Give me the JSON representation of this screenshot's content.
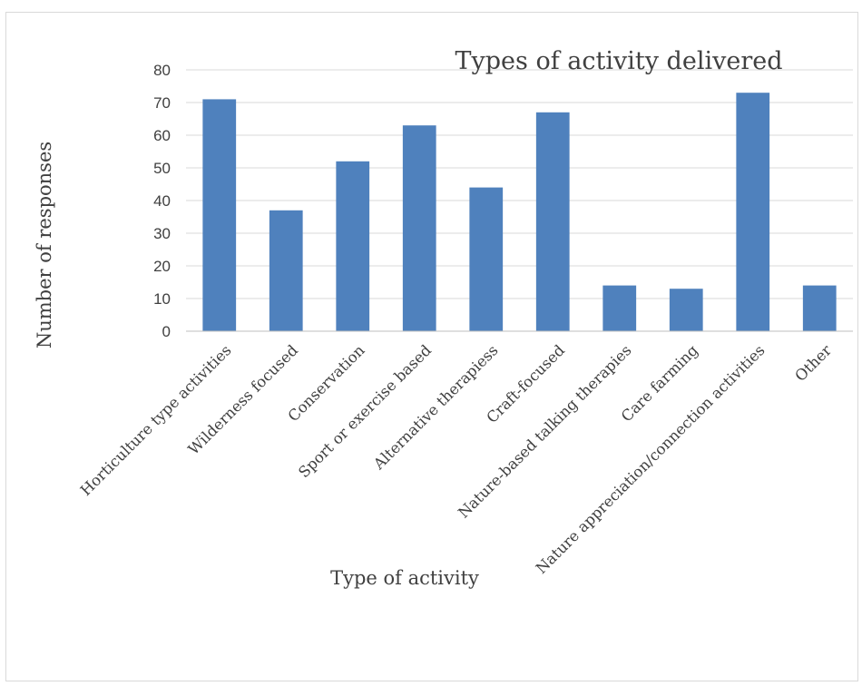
{
  "chart_data": {
    "type": "bar",
    "title": "Types of activity delivered",
    "xlabel": "Type of activity",
    "ylabel": "Number of responses",
    "ylim": [
      0,
      80
    ],
    "yticks": [
      0,
      10,
      20,
      30,
      40,
      50,
      60,
      70,
      80
    ],
    "grid": true,
    "legend": "none",
    "bar_color": "#4f81bd",
    "categories": [
      "Horticulture type activities",
      "Wilderness focused",
      "Conservation",
      "Sport or exercise based",
      "Alternative therapiess",
      "Craft-focused",
      "Nature-based talking therapies",
      "Care farming",
      "Nature appreciation/connection activities",
      "Other"
    ],
    "values": [
      71,
      37,
      52,
      63,
      44,
      67,
      14,
      13,
      73,
      14
    ]
  }
}
